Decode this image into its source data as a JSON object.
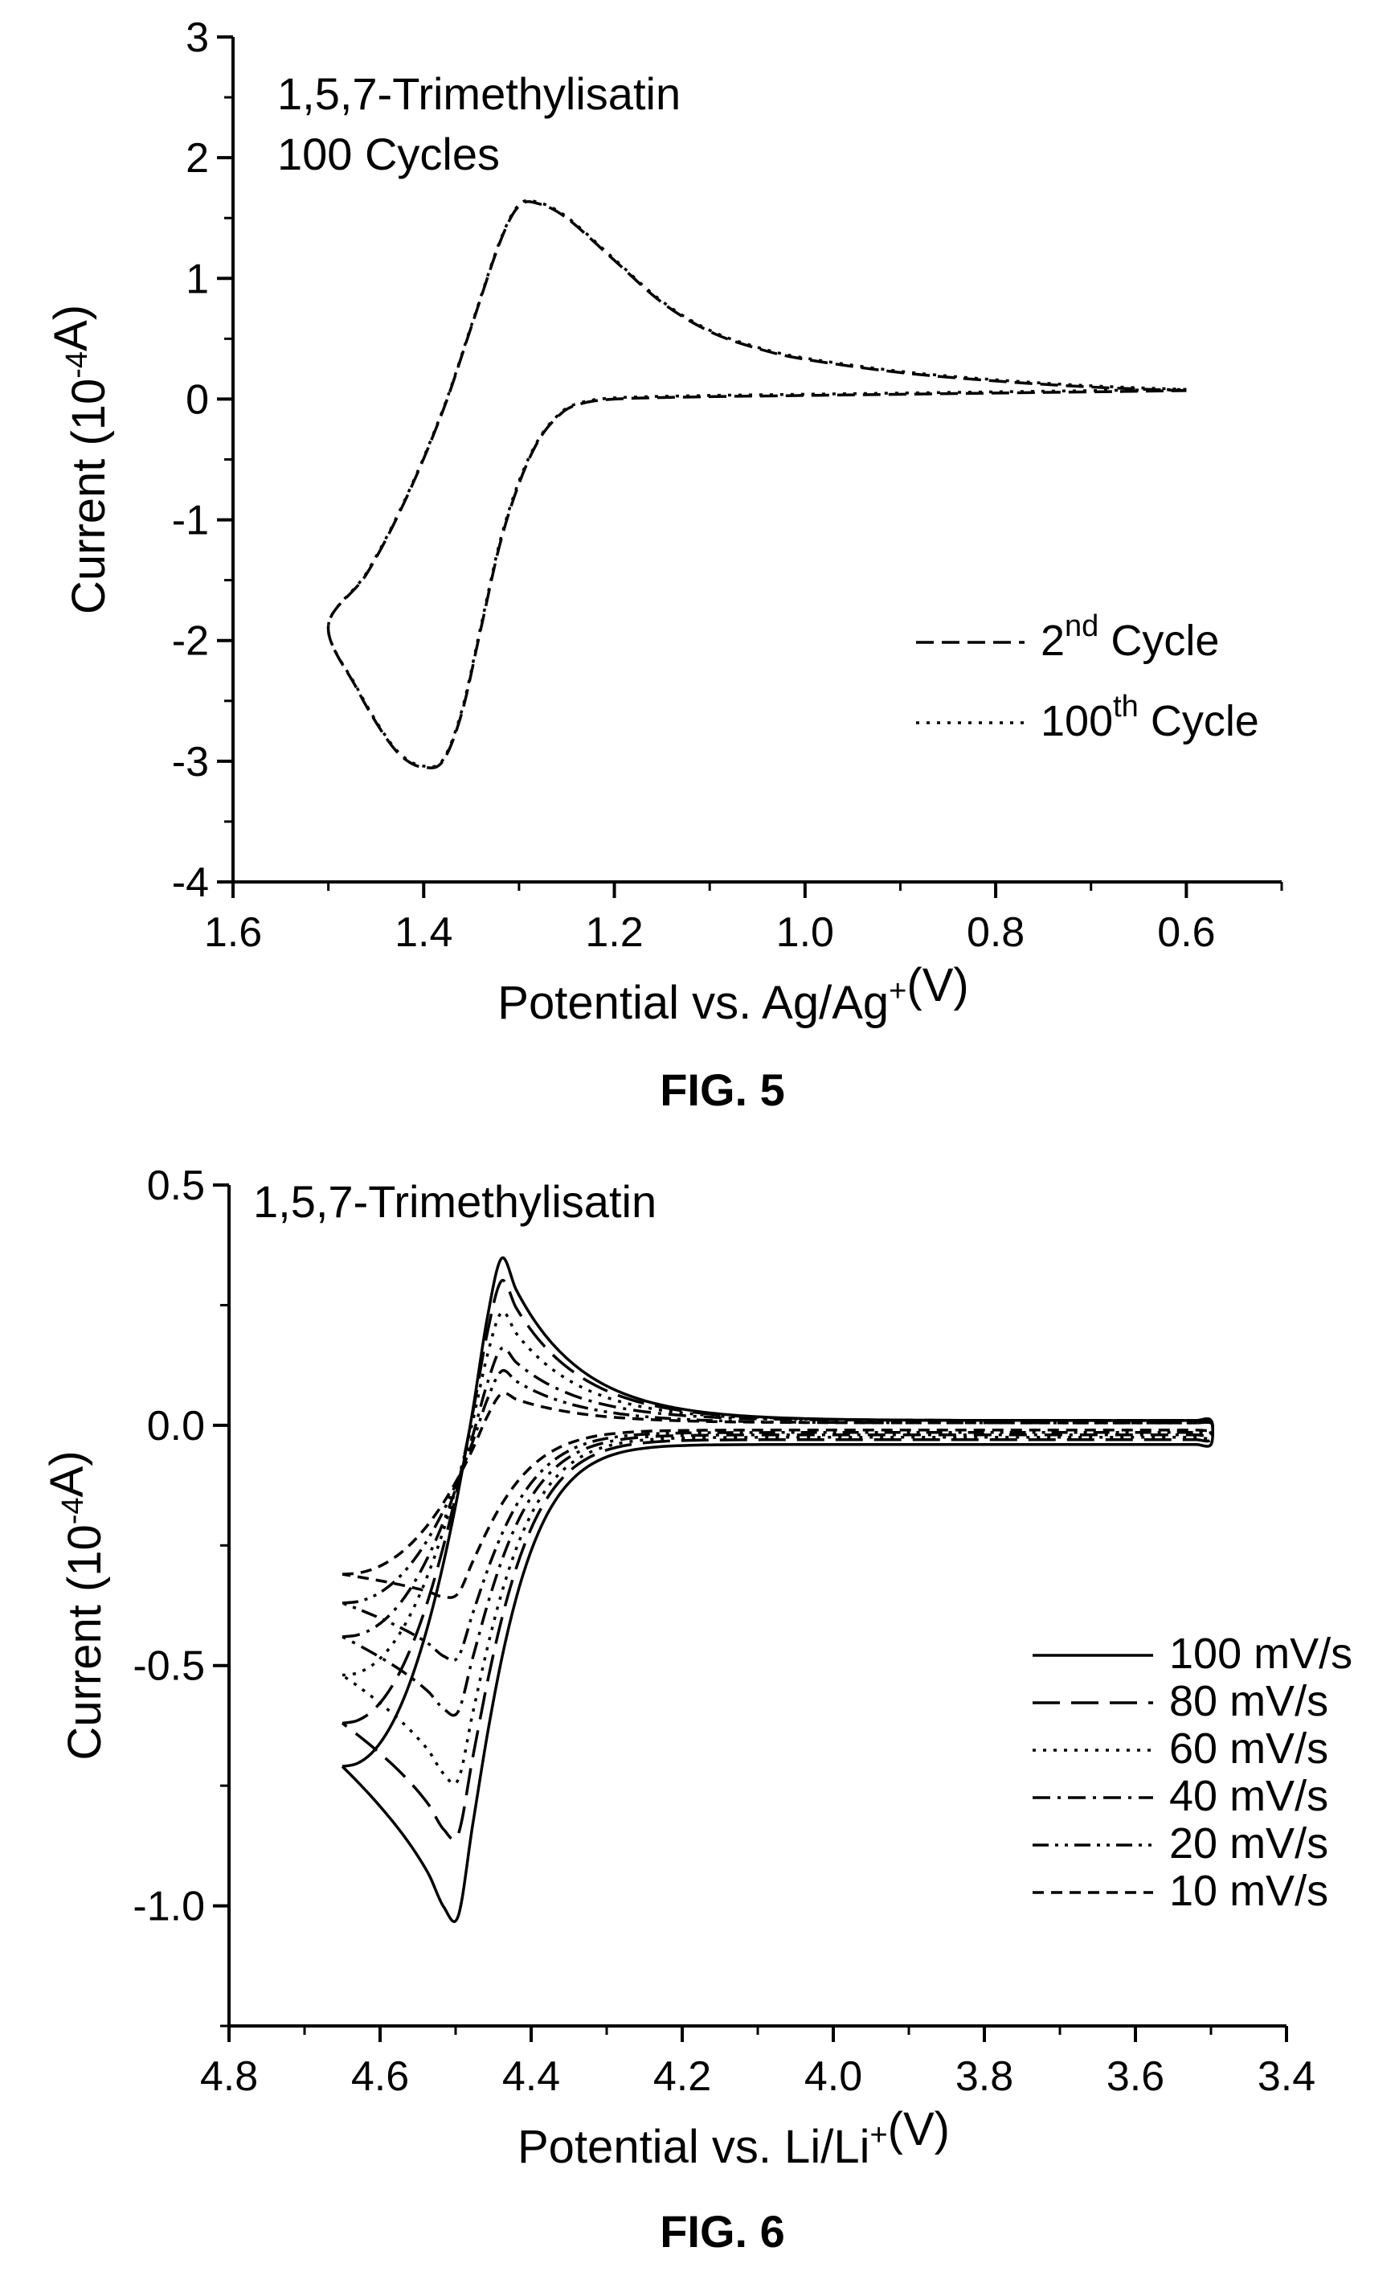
{
  "chart_data": [
    {
      "type": "line",
      "title": "1,5,7-Trimethylisatin",
      "subtitle": "100 Cycles",
      "xlabel": "Potential vs. Ag/Ag+(V)",
      "ylabel": "Current (10-4A)",
      "caption": "FIG. 5",
      "xlim": [
        1.6,
        0.5
      ],
      "ylim": [
        -4,
        3
      ],
      "x_ticks": [
        "1.6",
        "1.4",
        "1.2",
        "1.0",
        "0.8",
        "0.6"
      ],
      "y_ticks": [
        "3",
        "2",
        "1",
        "0",
        "-1",
        "-2",
        "-3",
        "-4"
      ],
      "legend": {
        "position": "right"
      },
      "series": [
        {
          "name": "2nd Cycle",
          "dash": "dashed",
          "x": [
            0.6,
            0.7,
            0.8,
            0.9,
            1.0,
            1.05,
            1.1,
            1.15,
            1.2,
            1.25,
            1.28,
            1.3,
            1.32,
            1.35,
            1.38,
            1.42,
            1.46,
            1.5,
            1.47,
            1.44,
            1.42,
            1.4,
            1.38,
            1.36,
            1.34,
            1.32,
            1.3,
            1.28,
            1.26,
            1.24,
            1.2,
            1.1,
            1.0,
            0.8,
            0.6
          ],
          "y": [
            0.07,
            0.1,
            0.15,
            0.22,
            0.33,
            0.42,
            0.56,
            0.8,
            1.15,
            1.5,
            1.62,
            1.6,
            1.3,
            0.6,
            -0.1,
            -0.85,
            -1.45,
            -1.88,
            -2.4,
            -2.8,
            -2.98,
            -3.05,
            -3.0,
            -2.6,
            -1.9,
            -1.2,
            -0.7,
            -0.35,
            -0.15,
            -0.05,
            0.0,
            0.02,
            0.03,
            0.05,
            0.07
          ]
        },
        {
          "name": "100th Cycle",
          "dash": "dotted",
          "x": [
            0.6,
            0.7,
            0.8,
            0.9,
            1.0,
            1.05,
            1.1,
            1.15,
            1.2,
            1.25,
            1.28,
            1.3,
            1.32,
            1.35,
            1.38,
            1.42,
            1.46,
            1.5,
            1.47,
            1.44,
            1.42,
            1.4,
            1.38,
            1.36,
            1.34,
            1.32,
            1.3,
            1.28,
            1.26,
            1.24,
            1.2,
            1.1,
            1.0,
            0.8,
            0.6
          ],
          "y": [
            0.08,
            0.11,
            0.16,
            0.23,
            0.34,
            0.43,
            0.57,
            0.81,
            1.16,
            1.51,
            1.63,
            1.61,
            1.31,
            0.61,
            -0.09,
            -0.84,
            -1.44,
            -1.88,
            -2.39,
            -2.79,
            -2.97,
            -3.04,
            -2.99,
            -2.58,
            -1.88,
            -1.18,
            -0.68,
            -0.34,
            -0.14,
            -0.04,
            0.01,
            0.03,
            0.04,
            0.06,
            0.08
          ]
        }
      ]
    },
    {
      "type": "line",
      "title": "1,5,7-Trimethylisatin",
      "xlabel": "Potential vs. Li/Li+(V)",
      "ylabel": "Current (10-4A)",
      "caption": "FIG. 6",
      "xlim": [
        4.8,
        3.4
      ],
      "ylim": [
        -1.25,
        0.5
      ],
      "x_ticks": [
        "4.8",
        "4.6",
        "4.4",
        "4.2",
        "4.0",
        "3.8",
        "3.6",
        "3.4"
      ],
      "y_ticks": [
        "0.5",
        "0.0",
        "-0.5",
        "-1.0"
      ],
      "legend": {
        "position": "right"
      },
      "series": [
        {
          "name": "100 mV/s",
          "dash": "solid",
          "vertex": -0.71,
          "peak_ox": 0.37,
          "peak_red": -1.08,
          "base_ox": 0.01,
          "base_red": -0.04
        },
        {
          "name": "80 mV/s",
          "dash": "long-dash",
          "vertex": -0.62,
          "peak_ox": 0.32,
          "peak_red": -0.9,
          "base_ox": 0.01,
          "base_red": -0.03
        },
        {
          "name": "60 mV/s",
          "dash": "dotted",
          "vertex": -0.52,
          "peak_ox": 0.25,
          "peak_red": -0.78,
          "base_ox": 0.01,
          "base_red": -0.025
        },
        {
          "name": "40 mV/s",
          "dash": "dash-dot",
          "vertex": -0.44,
          "peak_ox": 0.17,
          "peak_red": -0.63,
          "base_ox": 0.01,
          "base_red": -0.02
        },
        {
          "name": "20 mV/s",
          "dash": "dash-dot-dot",
          "vertex": -0.37,
          "peak_ox": 0.12,
          "peak_red": -0.51,
          "base_ox": 0.005,
          "base_red": -0.015
        },
        {
          "name": "10 mV/s",
          "dash": "short-dash",
          "vertex": -0.31,
          "peak_ox": 0.07,
          "peak_red": -0.37,
          "base_ox": 0.005,
          "base_red": -0.01
        }
      ]
    }
  ]
}
